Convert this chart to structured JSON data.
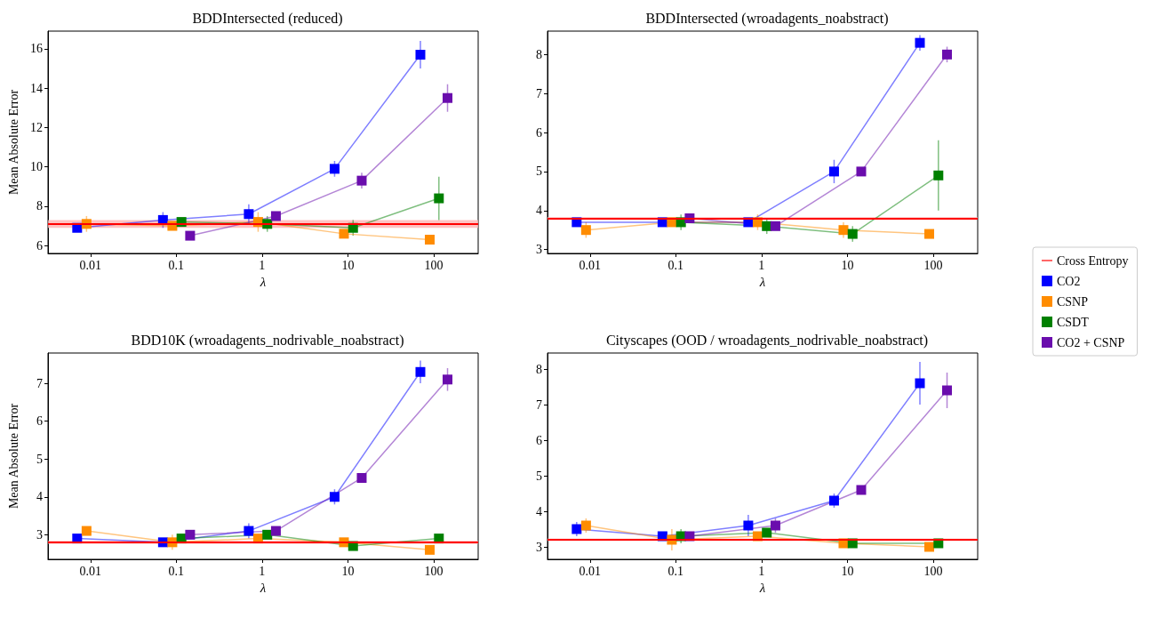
{
  "chart_data": [
    {
      "type": "line",
      "title": "BDDIntersected (reduced)",
      "xlabel": "λ",
      "ylabel": "Mean Absolute Error",
      "log": "x",
      "marker": "square",
      "line_style": "solid",
      "grid": false,
      "legend": false,
      "xlim": [
        0.0032,
        330
      ],
      "xticks": [
        0.01,
        0.1,
        1,
        10,
        100
      ],
      "ylim": [
        5.6,
        16.9
      ],
      "yticks": [
        6,
        8,
        10,
        12,
        14,
        16
      ],
      "ref_lines": [
        {
          "axis": "y",
          "value": 7.1,
          "color": "#ff0000"
        }
      ],
      "bands": [
        {
          "axis": "y",
          "from": 6.9,
          "to": 7.3,
          "color": "#ffb3b3"
        }
      ],
      "series": [
        {
          "color": "#0000ff",
          "x": [
            0.007,
            0.07,
            0.7,
            7,
            70
          ],
          "values": [
            6.9,
            7.3,
            7.6,
            9.9,
            15.7
          ],
          "errors": [
            0.1,
            0.4,
            0.5,
            0.4,
            0.7
          ]
        },
        {
          "color": "#ff8c00",
          "x": [
            0.009,
            0.09,
            0.9,
            9,
            90
          ],
          "values": [
            7.1,
            7.0,
            7.2,
            6.6,
            6.3
          ],
          "errors": [
            0.4,
            0.1,
            0.5,
            0.2,
            0.1
          ]
        },
        {
          "color": "#008000",
          "x": [
            0.115,
            1.15,
            11.5,
            115
          ],
          "values": [
            7.2,
            7.1,
            6.9,
            8.4
          ],
          "errors": [
            0.1,
            0.4,
            0.4,
            1.1
          ]
        },
        {
          "color": "#6a0dad",
          "x": [
            0.145,
            1.45,
            14.5,
            145
          ],
          "values": [
            6.5,
            7.5,
            9.3,
            13.5
          ],
          "errors": [
            0.1,
            0.1,
            0.4,
            0.7
          ]
        }
      ]
    },
    {
      "type": "line",
      "title": "BDDIntersected (wroadagents_noabstract)",
      "xlabel": "λ",
      "log": "x",
      "marker": "square",
      "line_style": "solid",
      "grid": false,
      "legend": "right",
      "xlim": [
        0.0032,
        330
      ],
      "xticks": [
        0.01,
        0.1,
        1,
        10,
        100
      ],
      "ylim": [
        2.9,
        8.6
      ],
      "yticks": [
        3,
        4,
        5,
        6,
        7,
        8
      ],
      "ref_lines": [
        {
          "axis": "y",
          "value": 3.8,
          "label": "Cross Entropy",
          "color": "#ff0000"
        }
      ],
      "bands": [
        {
          "axis": "y",
          "from": 3.77,
          "to": 3.83,
          "color": "#ffb3b3"
        }
      ],
      "series": [
        {
          "name": "CO2",
          "color": "#0000ff",
          "x": [
            0.007,
            0.07,
            0.7,
            7,
            70
          ],
          "values": [
            3.7,
            3.7,
            3.7,
            5.0,
            8.3
          ],
          "errors": [
            0.1,
            0.1,
            0.1,
            0.3,
            0.2
          ]
        },
        {
          "name": "CSNP",
          "color": "#ff8c00",
          "x": [
            0.009,
            0.09,
            0.9,
            9,
            90
          ],
          "values": [
            3.5,
            3.7,
            3.7,
            3.5,
            3.4
          ],
          "errors": [
            0.2,
            0.1,
            0.2,
            0.2,
            0.1
          ]
        },
        {
          "name": "CSDT",
          "color": "#008000",
          "x": [
            0.115,
            1.15,
            11.5,
            115
          ],
          "values": [
            3.7,
            3.6,
            3.4,
            4.9
          ],
          "errors": [
            0.2,
            0.2,
            0.2,
            0.9
          ]
        },
        {
          "name": "CO2 + CSNP",
          "color": "#6a0dad",
          "x": [
            0.145,
            1.45,
            14.5,
            145
          ],
          "values": [
            3.8,
            3.6,
            5.0,
            8.0
          ],
          "errors": [
            0.1,
            0.1,
            0.1,
            0.2
          ]
        }
      ]
    },
    {
      "type": "line",
      "title": "BDD10K (wroadagents_nodrivable_noabstract)",
      "xlabel": "λ",
      "ylabel": "Mean Absolute Error",
      "log": "x",
      "marker": "square",
      "line_style": "solid",
      "grid": false,
      "legend": false,
      "xlim": [
        0.0032,
        330
      ],
      "xticks": [
        0.01,
        0.1,
        1,
        10,
        100
      ],
      "ylim": [
        2.35,
        7.8
      ],
      "yticks": [
        3,
        4,
        5,
        6,
        7
      ],
      "ref_lines": [
        {
          "axis": "y",
          "value": 2.8,
          "color": "#ff0000"
        }
      ],
      "bands": [
        {
          "axis": "y",
          "from": 2.76,
          "to": 2.84,
          "color": "#ffb3b3"
        }
      ],
      "series": [
        {
          "color": "#0000ff",
          "x": [
            0.007,
            0.07,
            0.7,
            7,
            70
          ],
          "values": [
            2.9,
            2.8,
            3.1,
            4.0,
            7.3
          ],
          "errors": [
            0.1,
            0.1,
            0.2,
            0.2,
            0.3
          ]
        },
        {
          "color": "#ff8c00",
          "x": [
            0.009,
            0.09,
            0.9,
            9,
            90
          ],
          "values": [
            3.1,
            2.8,
            2.9,
            2.8,
            2.6
          ],
          "errors": [
            0.1,
            0.2,
            0.1,
            0.1,
            0.1
          ]
        },
        {
          "color": "#008000",
          "x": [
            0.115,
            1.15,
            11.5,
            115
          ],
          "values": [
            2.9,
            3.0,
            2.7,
            2.9
          ],
          "errors": [
            0.1,
            0.1,
            0.1,
            0.1
          ]
        },
        {
          "color": "#6a0dad",
          "x": [
            0.145,
            1.45,
            14.5,
            145
          ],
          "values": [
            3.0,
            3.1,
            4.5,
            7.1
          ],
          "errors": [
            0.1,
            0.1,
            0.1,
            0.3
          ]
        }
      ]
    },
    {
      "type": "line",
      "title": "Cityscapes (OOD / wroadagents_nodrivable_noabstract)",
      "xlabel": "λ",
      "log": "x",
      "marker": "square",
      "line_style": "solid",
      "grid": false,
      "legend": false,
      "xlim": [
        0.0032,
        330
      ],
      "xticks": [
        0.01,
        0.1,
        1,
        10,
        100
      ],
      "ylim": [
        2.65,
        8.45
      ],
      "yticks": [
        3,
        4,
        5,
        6,
        7,
        8
      ],
      "ref_lines": [
        {
          "axis": "y",
          "value": 3.2,
          "color": "#ff0000"
        }
      ],
      "bands": [
        {
          "axis": "y",
          "from": 3.17,
          "to": 3.23,
          "color": "#ffb3b3"
        }
      ],
      "series": [
        {
          "color": "#0000ff",
          "x": [
            0.007,
            0.07,
            0.7,
            7,
            70
          ],
          "values": [
            3.5,
            3.3,
            3.6,
            4.3,
            7.6
          ],
          "errors": [
            0.2,
            0.1,
            0.3,
            0.2,
            0.6
          ]
        },
        {
          "color": "#ff8c00",
          "x": [
            0.009,
            0.09,
            0.9,
            9,
            90
          ],
          "values": [
            3.6,
            3.2,
            3.3,
            3.1,
            3.0
          ],
          "errors": [
            0.2,
            0.3,
            0.1,
            0.1,
            0.1
          ]
        },
        {
          "color": "#008000",
          "x": [
            0.115,
            1.15,
            11.5,
            115
          ],
          "values": [
            3.3,
            3.4,
            3.1,
            3.1
          ],
          "errors": [
            0.2,
            0.1,
            0.1,
            0.1
          ]
        },
        {
          "color": "#6a0dad",
          "x": [
            0.145,
            1.45,
            14.5,
            145
          ],
          "values": [
            3.3,
            3.6,
            4.6,
            7.4
          ],
          "errors": [
            0.1,
            0.2,
            0.1,
            0.5
          ]
        }
      ]
    }
  ]
}
